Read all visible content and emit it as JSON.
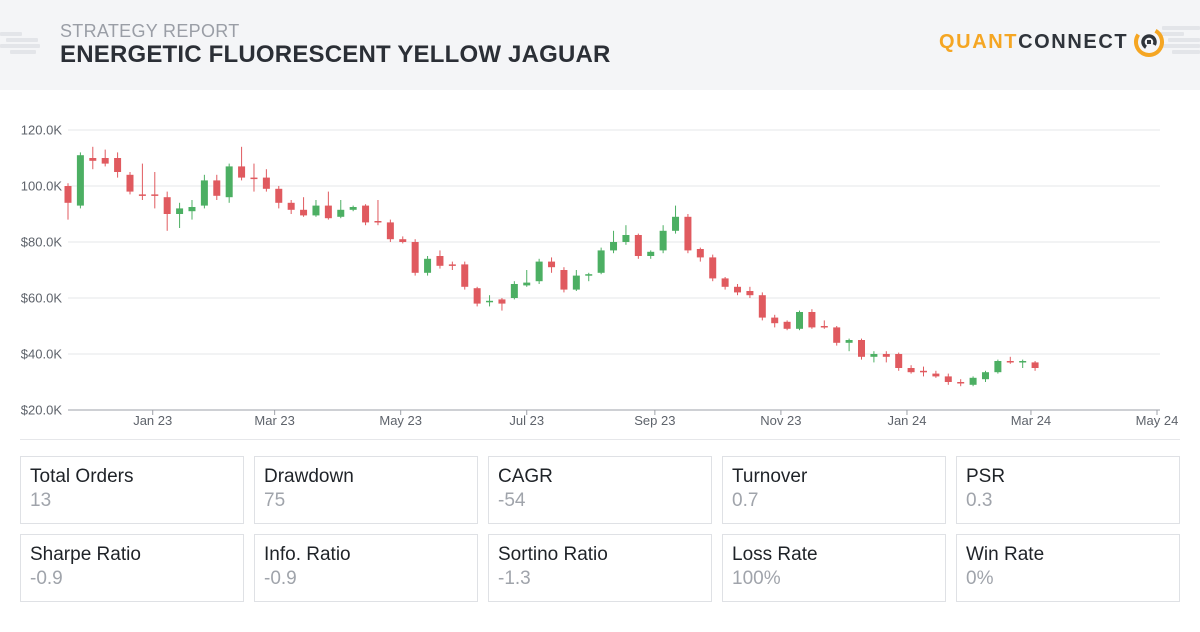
{
  "header": {
    "label": "STRATEGY REPORT",
    "title": "ENERGETIC FLUORESCENT YELLOW JAGUAR",
    "logo": {
      "quant": "QUANT",
      "connect": "CONNECT",
      "accent": "#f5a623"
    }
  },
  "chart_data": {
    "type": "candlestick",
    "title": "",
    "xlabel": "",
    "ylabel": "",
    "ylim": [
      20000,
      120000
    ],
    "y_ticks": [
      {
        "value": 120000,
        "label": "120.0K"
      },
      {
        "value": 100000,
        "label": "100.0K"
      },
      {
        "value": 80000,
        "label": "$80.0K"
      },
      {
        "value": 60000,
        "label": "$60.0K"
      },
      {
        "value": 40000,
        "label": "$40.0K"
      },
      {
        "value": 20000,
        "label": "$20.0K"
      }
    ],
    "x_range": [
      "2022-11-21",
      "2024-05-01"
    ],
    "x_ticks": [
      {
        "date": "2023-01-01",
        "label": "Jan 23"
      },
      {
        "date": "2023-03-01",
        "label": "Mar 23"
      },
      {
        "date": "2023-05-01",
        "label": "May 23"
      },
      {
        "date": "2023-07-01",
        "label": "Jul 23"
      },
      {
        "date": "2023-09-01",
        "label": "Sep 23"
      },
      {
        "date": "2023-11-01",
        "label": "Nov 23"
      },
      {
        "date": "2024-01-01",
        "label": "Jan 24"
      },
      {
        "date": "2024-03-01",
        "label": "Mar 24"
      },
      {
        "date": "2024-05-01",
        "label": "May 24"
      }
    ],
    "grid": true,
    "colors": {
      "up": "#4caf63",
      "down": "#e05a5f"
    },
    "candles": [
      {
        "date": "2022-11-21",
        "open": 100000,
        "high": 101000,
        "low": 88000,
        "close": 94000
      },
      {
        "date": "2022-11-27",
        "open": 93000,
        "high": 112000,
        "low": 92000,
        "close": 111000
      },
      {
        "date": "2022-12-03",
        "open": 110000,
        "high": 114000,
        "low": 106000,
        "close": 109000
      },
      {
        "date": "2022-12-09",
        "open": 110000,
        "high": 113000,
        "low": 107000,
        "close": 108000
      },
      {
        "date": "2022-12-15",
        "open": 110000,
        "high": 112000,
        "low": 103000,
        "close": 105000
      },
      {
        "date": "2022-12-21",
        "open": 104000,
        "high": 105000,
        "low": 97000,
        "close": 98000
      },
      {
        "date": "2022-12-27",
        "open": 97000,
        "high": 108000,
        "low": 95000,
        "close": 96500
      },
      {
        "date": "2023-01-02",
        "open": 97000,
        "high": 105000,
        "low": 92000,
        "close": 96500
      },
      {
        "date": "2023-01-08",
        "open": 96000,
        "high": 98000,
        "low": 84000,
        "close": 90000
      },
      {
        "date": "2023-01-14",
        "open": 90000,
        "high": 94000,
        "low": 85000,
        "close": 92000
      },
      {
        "date": "2023-01-20",
        "open": 91000,
        "high": 95000,
        "low": 88000,
        "close": 92500
      },
      {
        "date": "2023-01-26",
        "open": 93000,
        "high": 104000,
        "low": 92000,
        "close": 102000
      },
      {
        "date": "2023-02-01",
        "open": 102000,
        "high": 104000,
        "low": 95000,
        "close": 96500
      },
      {
        "date": "2023-02-07",
        "open": 96000,
        "high": 108000,
        "low": 94000,
        "close": 107000
      },
      {
        "date": "2023-02-13",
        "open": 107000,
        "high": 114000,
        "low": 102000,
        "close": 103000
      },
      {
        "date": "2023-02-19",
        "open": 103000,
        "high": 108000,
        "low": 98000,
        "close": 102500
      },
      {
        "date": "2023-02-25",
        "open": 103000,
        "high": 106000,
        "low": 98000,
        "close": 99000
      },
      {
        "date": "2023-03-03",
        "open": 99000,
        "high": 100000,
        "low": 92000,
        "close": 94000
      },
      {
        "date": "2023-03-09",
        "open": 94000,
        "high": 95000,
        "low": 90000,
        "close": 91500
      },
      {
        "date": "2023-03-15",
        "open": 91500,
        "high": 96000,
        "low": 89000,
        "close": 89500
      },
      {
        "date": "2023-03-21",
        "open": 89500,
        "high": 95000,
        "low": 89000,
        "close": 93000
      },
      {
        "date": "2023-03-27",
        "open": 93000,
        "high": 98000,
        "low": 88000,
        "close": 88500
      },
      {
        "date": "2023-04-02",
        "open": 89000,
        "high": 95000,
        "low": 88500,
        "close": 91500
      },
      {
        "date": "2023-04-08",
        "open": 91500,
        "high": 93000,
        "low": 91000,
        "close": 92500
      },
      {
        "date": "2023-04-14",
        "open": 93000,
        "high": 93500,
        "low": 86000,
        "close": 87000
      },
      {
        "date": "2023-04-20",
        "open": 87500,
        "high": 95000,
        "low": 86000,
        "close": 87000
      },
      {
        "date": "2023-04-26",
        "open": 87000,
        "high": 88000,
        "low": 80000,
        "close": 81000
      },
      {
        "date": "2023-05-02",
        "open": 81000,
        "high": 82000,
        "low": 79500,
        "close": 80000
      },
      {
        "date": "2023-05-08",
        "open": 80000,
        "high": 81000,
        "low": 68000,
        "close": 69000
      },
      {
        "date": "2023-05-14",
        "open": 69000,
        "high": 75000,
        "low": 68000,
        "close": 74000
      },
      {
        "date": "2023-05-20",
        "open": 75000,
        "high": 77000,
        "low": 70500,
        "close": 71500
      },
      {
        "date": "2023-05-26",
        "open": 72000,
        "high": 73000,
        "low": 70000,
        "close": 71500
      },
      {
        "date": "2023-06-01",
        "open": 72000,
        "high": 73000,
        "low": 63000,
        "close": 64000
      },
      {
        "date": "2023-06-07",
        "open": 63500,
        "high": 64000,
        "low": 57000,
        "close": 58000
      },
      {
        "date": "2023-06-13",
        "open": 58500,
        "high": 61000,
        "low": 57000,
        "close": 59000
      },
      {
        "date": "2023-06-19",
        "open": 59500,
        "high": 60000,
        "low": 55500,
        "close": 58000
      },
      {
        "date": "2023-06-25",
        "open": 60000,
        "high": 66000,
        "low": 59500,
        "close": 65000
      },
      {
        "date": "2023-07-01",
        "open": 64500,
        "high": 70000,
        "low": 64000,
        "close": 65500
      },
      {
        "date": "2023-07-07",
        "open": 66000,
        "high": 74000,
        "low": 65000,
        "close": 73000
      },
      {
        "date": "2023-07-13",
        "open": 73000,
        "high": 74500,
        "low": 69000,
        "close": 71000
      },
      {
        "date": "2023-07-19",
        "open": 70000,
        "high": 71000,
        "low": 62000,
        "close": 63000
      },
      {
        "date": "2023-07-25",
        "open": 63000,
        "high": 70000,
        "low": 62500,
        "close": 68000
      },
      {
        "date": "2023-07-31",
        "open": 68000,
        "high": 69000,
        "low": 66000,
        "close": 68500
      },
      {
        "date": "2023-08-06",
        "open": 69000,
        "high": 78000,
        "low": 68500,
        "close": 77000
      },
      {
        "date": "2023-08-12",
        "open": 77000,
        "high": 84000,
        "low": 76000,
        "close": 80000
      },
      {
        "date": "2023-08-18",
        "open": 80000,
        "high": 86000,
        "low": 79000,
        "close": 82500
      },
      {
        "date": "2023-08-24",
        "open": 82500,
        "high": 83000,
        "low": 74000,
        "close": 75000
      },
      {
        "date": "2023-08-30",
        "open": 75000,
        "high": 77000,
        "low": 74000,
        "close": 76500
      },
      {
        "date": "2023-09-05",
        "open": 77000,
        "high": 86000,
        "low": 76000,
        "close": 84000
      },
      {
        "date": "2023-09-11",
        "open": 84000,
        "high": 93000,
        "low": 83000,
        "close": 89000
      },
      {
        "date": "2023-09-17",
        "open": 89000,
        "high": 90000,
        "low": 76000,
        "close": 77000
      },
      {
        "date": "2023-09-23",
        "open": 77500,
        "high": 78000,
        "low": 73000,
        "close": 74500
      },
      {
        "date": "2023-09-29",
        "open": 74500,
        "high": 75500,
        "low": 66000,
        "close": 67000
      },
      {
        "date": "2023-10-05",
        "open": 67000,
        "high": 67500,
        "low": 63000,
        "close": 64000
      },
      {
        "date": "2023-10-11",
        "open": 64000,
        "high": 65000,
        "low": 61000,
        "close": 62000
      },
      {
        "date": "2023-10-17",
        "open": 62500,
        "high": 64000,
        "low": 60000,
        "close": 61000
      },
      {
        "date": "2023-10-23",
        "open": 61000,
        "high": 62000,
        "low": 52000,
        "close": 53000
      },
      {
        "date": "2023-10-29",
        "open": 53000,
        "high": 54000,
        "low": 49500,
        "close": 51000
      },
      {
        "date": "2023-11-04",
        "open": 51500,
        "high": 52000,
        "low": 48500,
        "close": 49000
      },
      {
        "date": "2023-11-10",
        "open": 49000,
        "high": 55500,
        "low": 48500,
        "close": 55000
      },
      {
        "date": "2023-11-16",
        "open": 55000,
        "high": 56000,
        "low": 49000,
        "close": 49500
      },
      {
        "date": "2023-11-22",
        "open": 50000,
        "high": 52000,
        "low": 49000,
        "close": 49500
      },
      {
        "date": "2023-11-28",
        "open": 49500,
        "high": 50000,
        "low": 43000,
        "close": 44000
      },
      {
        "date": "2023-12-04",
        "open": 44000,
        "high": 45500,
        "low": 41000,
        "close": 45000
      },
      {
        "date": "2023-12-10",
        "open": 45000,
        "high": 45500,
        "low": 38000,
        "close": 39000
      },
      {
        "date": "2023-12-16",
        "open": 39000,
        "high": 41000,
        "low": 37000,
        "close": 40000
      },
      {
        "date": "2023-12-22",
        "open": 40000,
        "high": 41000,
        "low": 37000,
        "close": 39000
      },
      {
        "date": "2023-12-28",
        "open": 40000,
        "high": 40500,
        "low": 34000,
        "close": 35000
      },
      {
        "date": "2024-01-03",
        "open": 35000,
        "high": 36000,
        "low": 33000,
        "close": 33500
      },
      {
        "date": "2024-01-09",
        "open": 34000,
        "high": 35500,
        "low": 32000,
        "close": 33500
      },
      {
        "date": "2024-01-15",
        "open": 33000,
        "high": 34000,
        "low": 31500,
        "close": 32000
      },
      {
        "date": "2024-01-21",
        "open": 32000,
        "high": 33000,
        "low": 29000,
        "close": 30000
      },
      {
        "date": "2024-01-27",
        "open": 30000,
        "high": 31000,
        "low": 28500,
        "close": 29500
      },
      {
        "date": "2024-02-02",
        "open": 29000,
        "high": 32000,
        "low": 28500,
        "close": 31500
      },
      {
        "date": "2024-02-08",
        "open": 31000,
        "high": 34000,
        "low": 30000,
        "close": 33500
      },
      {
        "date": "2024-02-14",
        "open": 33500,
        "high": 38000,
        "low": 33000,
        "close": 37500
      },
      {
        "date": "2024-02-20",
        "open": 37500,
        "high": 39000,
        "low": 36500,
        "close": 37000
      },
      {
        "date": "2024-02-26",
        "open": 37000,
        "high": 38000,
        "low": 35000,
        "close": 37500
      },
      {
        "date": "2024-03-03",
        "open": 37000,
        "high": 37500,
        "low": 34000,
        "close": 35000
      }
    ]
  },
  "stats": [
    {
      "label": "Total Orders",
      "value": "13"
    },
    {
      "label": "Drawdown",
      "value": "75"
    },
    {
      "label": "CAGR",
      "value": "-54"
    },
    {
      "label": "Turnover",
      "value": "0.7"
    },
    {
      "label": "PSR",
      "value": "0.3"
    },
    {
      "label": "Sharpe Ratio",
      "value": "-0.9"
    },
    {
      "label": "Info. Ratio",
      "value": "-0.9"
    },
    {
      "label": "Sortino Ratio",
      "value": "-1.3"
    },
    {
      "label": "Loss Rate",
      "value": "100%"
    },
    {
      "label": "Win Rate",
      "value": "0%"
    }
  ]
}
